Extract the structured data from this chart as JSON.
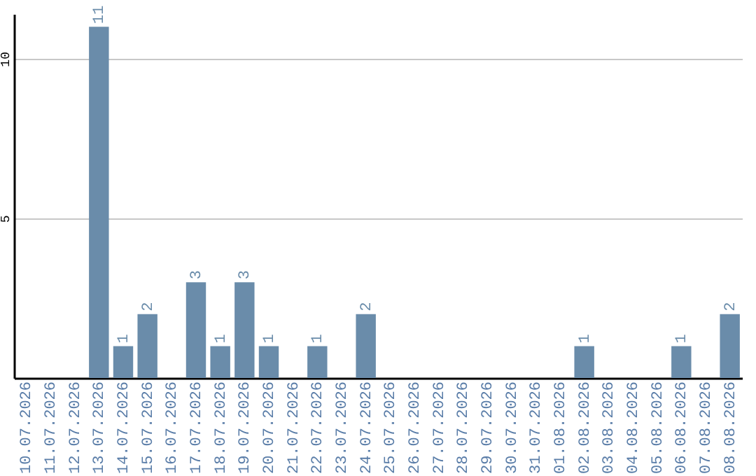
{
  "chart_data": {
    "type": "bar",
    "categories": [
      "10.07.2026",
      "11.07.2026",
      "12.07.2026",
      "13.07.2026",
      "14.07.2026",
      "15.07.2026",
      "16.07.2026",
      "17.07.2026",
      "18.07.2026",
      "19.07.2026",
      "20.07.2026",
      "21.07.2026",
      "22.07.2026",
      "23.07.2026",
      "24.07.2026",
      "25.07.2026",
      "26.07.2026",
      "27.07.2026",
      "28.07.2026",
      "29.07.2026",
      "30.07.2026",
      "31.07.2026",
      "01.08.2026",
      "02.08.2026",
      "03.08.2026",
      "04.08.2026",
      "05.08.2026",
      "06.08.2026",
      "07.08.2026",
      "08.08.2026"
    ],
    "values": [
      null,
      null,
      null,
      11,
      1,
      2,
      null,
      3,
      1,
      3,
      1,
      null,
      1,
      null,
      2,
      null,
      null,
      null,
      null,
      null,
      null,
      null,
      null,
      1,
      null,
      null,
      null,
      1,
      null,
      2
    ],
    "color": "#6a8caa",
    "ylim": [
      0,
      11.4
    ],
    "yticks": [
      5,
      10
    ],
    "grid": "y",
    "data_labels": true
  }
}
